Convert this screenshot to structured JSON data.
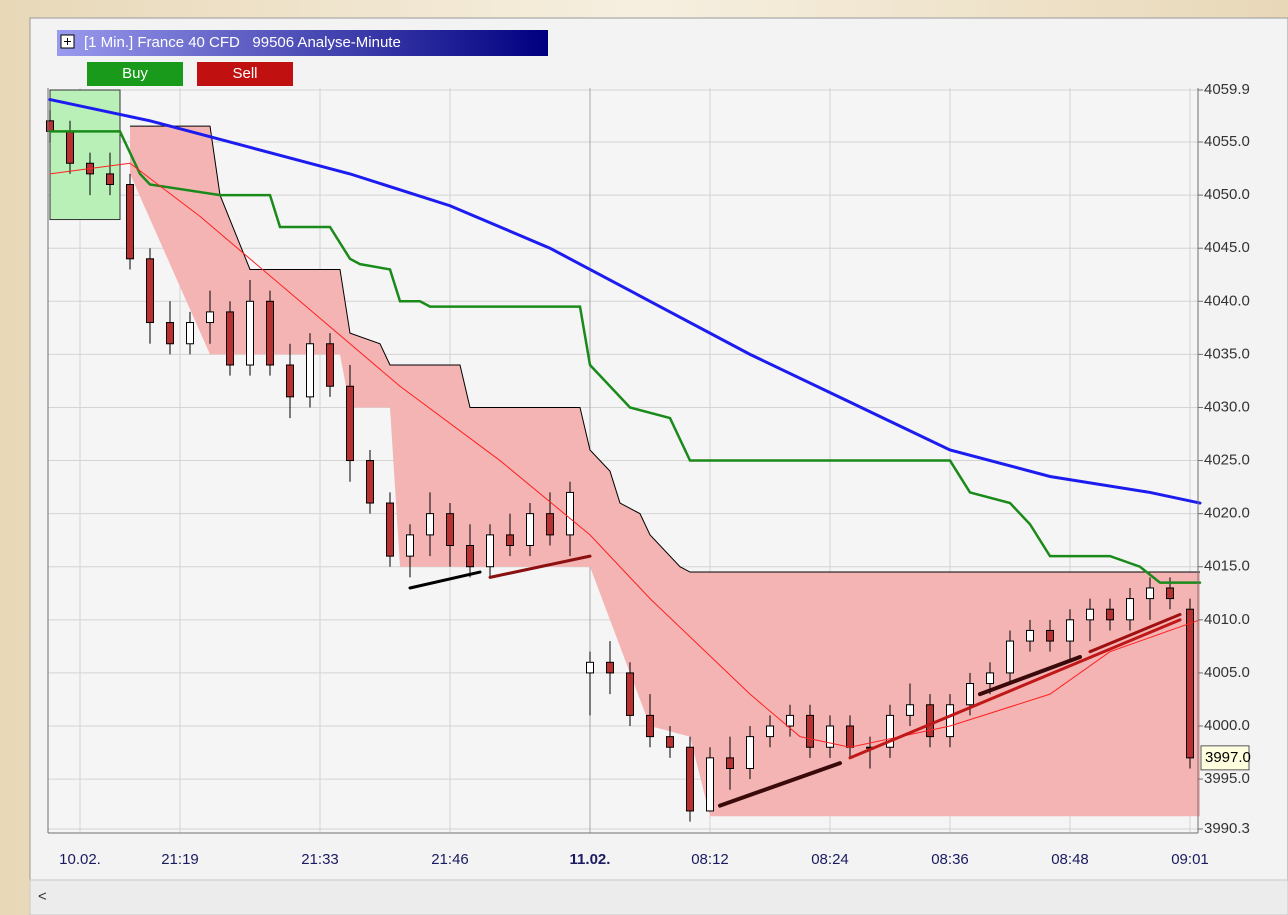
{
  "header": {
    "title": "[1 Min.] France 40 CFD   99506 Analyse-Minute",
    "buy": "Buy",
    "sell": "Sell"
  },
  "chart_data": {
    "type": "candlestick",
    "xlim": [
      0,
      115
    ],
    "ylim": [
      3990.3,
      4059.9
    ],
    "yticks": [
      4059.9,
      {
        "value": 4055,
        "label": "4055.0"
      },
      {
        "value": 4050,
        "label": "4050.0"
      },
      {
        "value": 4045,
        "label": "4045.0"
      },
      {
        "value": 4040,
        "label": "4040.0"
      },
      {
        "value": 4035,
        "label": "4035.0"
      },
      {
        "value": 4030,
        "label": "4030.0"
      },
      {
        "value": 4025,
        "label": "4025.0"
      },
      {
        "value": 4020,
        "label": "4020.0"
      },
      {
        "value": 4015,
        "label": "4015.0"
      },
      {
        "value": 4010,
        "label": "4010.0"
      },
      {
        "value": 4005,
        "label": "4005.0"
      },
      {
        "value": 4000,
        "label": "4000.0"
      },
      {
        "value": 3995,
        "label": "3995.0"
      },
      3990.3
    ],
    "xticks": [
      {
        "value": 3,
        "label": "10.02."
      },
      {
        "value": 13,
        "label": "21:19"
      },
      {
        "value": 27,
        "label": "21:33"
      },
      {
        "value": 40,
        "label": "21:46"
      },
      {
        "value": 54,
        "label": "11.02."
      },
      {
        "value": 66,
        "label": "08:12"
      },
      {
        "value": 78,
        "label": "08:24"
      },
      {
        "value": 90,
        "label": "08:36"
      },
      {
        "value": 102,
        "label": "08:48"
      },
      {
        "value": 114,
        "label": "09:01"
      }
    ],
    "grid": true,
    "up_color": "#ffffff",
    "down_color": "#b83030",
    "candles": {
      "x": [
        0,
        2,
        4,
        6,
        8,
        10,
        12,
        14,
        16,
        18,
        20,
        22,
        24,
        26,
        28,
        30,
        32,
        34,
        36,
        38,
        40,
        42,
        44,
        46,
        48,
        50,
        52,
        54,
        56,
        58,
        60,
        62,
        64,
        66,
        68,
        70,
        72,
        74,
        76,
        78,
        80,
        82,
        84,
        86,
        88,
        90,
        92,
        94,
        96,
        98,
        100,
        102,
        104,
        106,
        108,
        110,
        112,
        114
      ],
      "ohlc": [
        [
          4057,
          4058,
          4055,
          4056
        ],
        [
          4056,
          4057,
          4052,
          4053
        ],
        [
          4053,
          4054,
          4050,
          4052
        ],
        [
          4052,
          4054,
          4050,
          4051
        ],
        [
          4051,
          4052,
          4043,
          4044
        ],
        [
          4044,
          4045,
          4036,
          4038
        ],
        [
          4038,
          4040,
          4035,
          4036
        ],
        [
          4036,
          4039,
          4035,
          4038
        ],
        [
          4038,
          4041,
          4036,
          4039
        ],
        [
          4039,
          4040,
          4033,
          4034
        ],
        [
          4034,
          4042,
          4033,
          4040
        ],
        [
          4040,
          4041,
          4033,
          4034
        ],
        [
          4034,
          4036,
          4029,
          4031
        ],
        [
          4031,
          4037,
          4030,
          4036
        ],
        [
          4036,
          4037,
          4031,
          4032
        ],
        [
          4032,
          4034,
          4023,
          4025
        ],
        [
          4025,
          4026,
          4020,
          4021
        ],
        [
          4021,
          4022,
          4015,
          4016
        ],
        [
          4016,
          4019,
          4014,
          4018
        ],
        [
          4018,
          4022,
          4016,
          4020
        ],
        [
          4020,
          4021,
          4015,
          4017
        ],
        [
          4017,
          4019,
          4014,
          4015
        ],
        [
          4015,
          4019,
          4014,
          4018
        ],
        [
          4018,
          4020,
          4016,
          4017
        ],
        [
          4017,
          4021,
          4016,
          4020
        ],
        [
          4020,
          4022,
          4017,
          4018
        ],
        [
          4018,
          4023,
          4016,
          4022
        ],
        [
          4005,
          4007,
          4001,
          4006
        ],
        [
          4006,
          4008,
          4003,
          4005
        ],
        [
          4005,
          4006,
          4000,
          4001
        ],
        [
          4001,
          4003,
          3998,
          3999
        ],
        [
          3999,
          4000,
          3997,
          3998
        ],
        [
          3998,
          3999,
          3991,
          3992
        ],
        [
          3992,
          3998,
          3992,
          3997
        ],
        [
          3997,
          3999,
          3994,
          3996
        ],
        [
          3996,
          4000,
          3995,
          3999
        ],
        [
          3999,
          4001,
          3998,
          4000
        ],
        [
          4000,
          4002,
          3999,
          4001
        ],
        [
          4001,
          4002,
          3997,
          3998
        ],
        [
          3998,
          4001,
          3997,
          4000
        ],
        [
          4000,
          4001,
          3997,
          3998
        ],
        [
          3998,
          3999,
          3996,
          3998
        ],
        [
          3998,
          4002,
          3997,
          4001
        ],
        [
          4001,
          4004,
          4000,
          4002
        ],
        [
          4002,
          4003,
          3998,
          3999
        ],
        [
          3999,
          4003,
          3998,
          4002
        ],
        [
          4002,
          4005,
          4001,
          4004
        ],
        [
          4004,
          4006,
          4003,
          4005
        ],
        [
          4005,
          4009,
          4004,
          4008
        ],
        [
          4008,
          4010,
          4007,
          4009
        ],
        [
          4009,
          4010,
          4007,
          4008
        ],
        [
          4008,
          4011,
          4006,
          4010
        ],
        [
          4010,
          4012,
          4008,
          4011
        ],
        [
          4011,
          4012,
          4009,
          4010
        ],
        [
          4010,
          4013,
          4009,
          4012
        ],
        [
          4012,
          4014,
          4010,
          4013
        ],
        [
          4013,
          4014,
          4011,
          4012
        ],
        [
          4011,
          4012,
          3996,
          3997
        ]
      ]
    },
    "buy_zone": {
      "color": "#b8f0b8",
      "x": [
        0,
        7
      ],
      "y": [
        4047.7,
        4059.9
      ]
    },
    "band": {
      "color": "#f4b4b4",
      "upper_x": [
        8,
        16,
        17,
        20,
        29,
        30,
        33,
        34,
        41,
        42,
        53,
        54,
        56,
        57,
        59,
        60,
        63,
        64,
        115
      ],
      "upper_y": [
        4056.5,
        4056.5,
        4050,
        4043,
        4043,
        4037,
        4036,
        4034,
        4034,
        4030,
        4030,
        4026,
        4024,
        4021,
        4020,
        4018,
        4015,
        4014.5,
        4014.5
      ],
      "lower_x": [
        8,
        16,
        29,
        30,
        34,
        35,
        54,
        60,
        64,
        66,
        115
      ],
      "lower_y": [
        4052,
        4035,
        4035,
        4030,
        4030,
        4015,
        4015,
        4000,
        3999,
        3991.5,
        3991.5
      ]
    },
    "lines": [
      {
        "color": "#1c1cf0",
        "width": 3,
        "x": [
          0,
          10,
          20,
          30,
          40,
          50,
          54,
          60,
          70,
          80,
          90,
          100,
          110,
          115
        ],
        "y": [
          4059,
          4057,
          4054.5,
          4052,
          4049,
          4045,
          4043,
          4040,
          4035,
          4030.5,
          4026,
          4023.5,
          4022,
          4021
        ]
      },
      {
        "color": "#1a8a1a",
        "width": 2.5,
        "x": [
          0,
          7,
          9,
          10,
          17,
          22,
          23,
          28,
          30,
          31,
          34,
          35,
          37,
          38,
          53,
          54,
          56,
          58,
          62,
          64,
          90,
          92,
          96,
          98,
          100,
          106,
          109,
          111,
          115
        ],
        "y": [
          4056,
          4056,
          4052,
          4051,
          4050,
          4050,
          4047,
          4047,
          4044,
          4043.5,
          4043,
          4040,
          4040,
          4039.5,
          4039.5,
          4034,
          4032,
          4030,
          4029,
          4025,
          4025,
          4022,
          4021,
          4019,
          4016,
          4016,
          4015,
          4013.5,
          4013.5
        ]
      },
      {
        "color": "#ff2020",
        "width": 1,
        "x": [
          0,
          8,
          15,
          25,
          35,
          45,
          54,
          60,
          70,
          75,
          80,
          90,
          100,
          106,
          115
        ],
        "y": [
          4052,
          4053,
          4048,
          4040,
          4032,
          4025,
          4018,
          4012,
          4003,
          3999,
          3998,
          4000,
          4003,
          4007,
          4010
        ]
      },
      {
        "color": "#000000",
        "width": 3,
        "x": [
          36,
          43
        ],
        "y": [
          4013,
          4014.5
        ]
      },
      {
        "color": "#8b1010",
        "width": 3,
        "x": [
          44,
          54
        ],
        "y": [
          4014,
          4016
        ]
      },
      {
        "color": "#3a0a0a",
        "width": 4,
        "x": [
          67,
          79
        ],
        "y": [
          3992.5,
          3996.5
        ]
      },
      {
        "color": "#c01818",
        "width": 3,
        "x": [
          80,
          113
        ],
        "y": [
          3997,
          4010
        ]
      },
      {
        "color": "#3a0a0a",
        "width": 4,
        "x": [
          93,
          103
        ],
        "y": [
          4003,
          4006.5
        ]
      },
      {
        "color": "#a01010",
        "width": 3,
        "x": [
          104,
          113
        ],
        "y": [
          4007,
          4010.5
        ]
      }
    ],
    "last_price": {
      "value": 3997,
      "label": "3997.0"
    }
  }
}
